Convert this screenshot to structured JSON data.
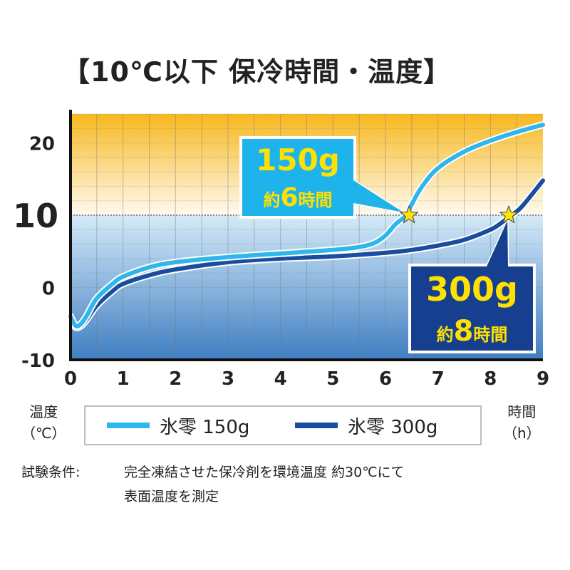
{
  "title": "【10℃以下 保冷時間・温度】",
  "chart_data": {
    "type": "line",
    "x_ticks": [
      "0",
      "1",
      "2",
      "3",
      "4",
      "5",
      "6",
      "7",
      "8",
      "9"
    ],
    "y_ticks": [
      {
        "value": 20,
        "label": "20"
      },
      {
        "value": 10,
        "label": "10"
      },
      {
        "value": 0,
        "label": "0"
      },
      {
        "value": -10,
        "label": "-10"
      }
    ],
    "xlim": [
      0,
      9
    ],
    "ylim": [
      -10,
      24
    ],
    "threshold": 10,
    "grid": true,
    "ylabel": "温度\n（℃）",
    "xlabel": "時間\n（h）",
    "series": [
      {
        "name": "氷零 150g",
        "color": "#2fb6ea",
        "x": [
          0,
          0.1,
          0.2,
          0.3,
          0.5,
          0.8,
          1,
          1.5,
          2,
          3,
          4,
          5,
          5.5,
          5.8,
          6,
          6.2,
          6.4,
          6.5,
          6.7,
          7,
          7.5,
          8,
          8.5,
          9
        ],
        "y": [
          -4,
          -5.3,
          -5,
          -4,
          -1.5,
          0.5,
          1.5,
          2.8,
          3.5,
          4.2,
          4.7,
          5.2,
          5.6,
          6.2,
          7.2,
          8.8,
          10,
          11.5,
          14,
          16.5,
          18.8,
          20.3,
          21.5,
          22.5
        ]
      },
      {
        "name": "氷零 300g",
        "color": "#1a4da0",
        "x": [
          0,
          0.1,
          0.2,
          0.3,
          0.5,
          0.8,
          1,
          1.5,
          2,
          3,
          4,
          5,
          6,
          6.5,
          7,
          7.5,
          8,
          8.2,
          8.4,
          8.6,
          9
        ],
        "y": [
          -4.5,
          -5.5,
          -5.3,
          -4.5,
          -2.5,
          -0.5,
          0.5,
          1.7,
          2.5,
          3.5,
          4,
          4.3,
          4.8,
          5.2,
          5.8,
          6.6,
          8,
          8.9,
          10,
          11.2,
          14.8
        ]
      }
    ],
    "annotations": [
      {
        "series": 0,
        "x": 6.45,
        "y": 10,
        "line1": "150g",
        "line2_a": "約",
        "line2_b": "6",
        "line2_c": "時間",
        "bg": "#1fb3ec",
        "border": "#ffffff",
        "text": "#ffe100"
      },
      {
        "series": 1,
        "x": 8.35,
        "y": 10,
        "line1": "300g",
        "line2_a": "約",
        "line2_b": "8",
        "line2_c": "時間",
        "bg": "#173f8f",
        "border": "#ffffff",
        "text": "#ffe100"
      }
    ],
    "colors": {
      "warm_top": "#f7b81e",
      "warm_bottom": "#fffaf0",
      "cool_top": "#d4eaf8",
      "cool_bottom": "#3f7ec2",
      "star": "#ffe600"
    }
  },
  "legend": {
    "item1": "氷零 150g",
    "item2": "氷零 300g"
  },
  "conditions": {
    "label": "試験条件:",
    "line1": "完全凍結させた保冷剤を環境温度 約30℃にて",
    "line2": "表面温度を測定"
  }
}
